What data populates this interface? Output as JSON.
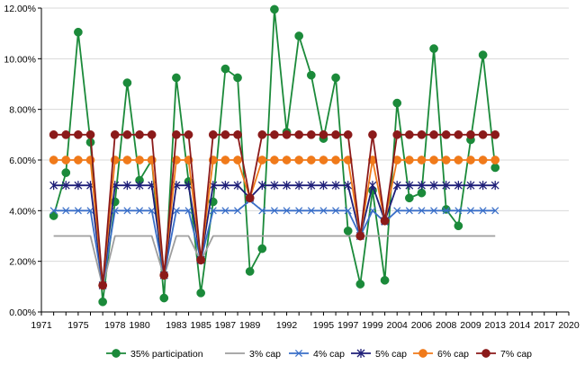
{
  "chart_data": {
    "type": "line",
    "title": "",
    "xlabel": "",
    "ylabel": "",
    "ylim": [
      0,
      12
    ],
    "y_tick_labels": [
      "0.00%",
      "2.00%",
      "4.00%",
      "6.00%",
      "8.00%",
      "10.00%",
      "12.00%"
    ],
    "y_tick_values": [
      0,
      2,
      4,
      6,
      8,
      10,
      12
    ],
    "x": [
      1971,
      1972,
      1973,
      1974,
      1975,
      1976,
      1977,
      1978,
      1979,
      1980,
      1981,
      1982,
      1983,
      1984,
      1985,
      1986,
      1987,
      1988,
      1989,
      1990,
      1991,
      1992,
      1993,
      1994,
      1995,
      1996,
      1997,
      1998,
      1999,
      2000,
      2001,
      2002,
      2003,
      2004,
      2005,
      2006,
      2007,
      2008,
      2009,
      2010,
      2011,
      2012,
      2013,
      2014,
      2015,
      2016,
      2017,
      2018,
      2019,
      2020
    ],
    "x_tick_labels": [
      "1971",
      "1975",
      "1978",
      "1980",
      "1983",
      "1985",
      "1987",
      "1989",
      "1992",
      "1995",
      "1997",
      "1999",
      "2004",
      "2006",
      "2008",
      "2009",
      "2013",
      "2014",
      "2017",
      "2020"
    ],
    "x_tick_positions": [
      0,
      1.5,
      3,
      4,
      5.5,
      6.5,
      7.5,
      8.5,
      10,
      11.5,
      12.5,
      13.5,
      14.5,
      15.5,
      16.5,
      17.5,
      18.5,
      19.5,
      20.5,
      21.5
    ],
    "x_index_max": 21.5,
    "series": [
      {
        "name": "35% participation",
        "color": "#1b8a3a",
        "marker": "circle",
        "points": [
          [
            0.5,
            3.8
          ],
          [
            1,
            5.5
          ],
          [
            1.5,
            11.05
          ],
          [
            2,
            6.7
          ],
          [
            2.5,
            0.4
          ],
          [
            3,
            4.35
          ],
          [
            3.5,
            9.05
          ],
          [
            4,
            5.2
          ],
          [
            4.5,
            6.0
          ],
          [
            5,
            0.55
          ],
          [
            5.5,
            9.25
          ],
          [
            6,
            5.15
          ],
          [
            6.5,
            0.75
          ],
          [
            7,
            4.35
          ],
          [
            7.5,
            9.6
          ],
          [
            8,
            9.25
          ],
          [
            8.5,
            1.6
          ],
          [
            9,
            2.5
          ],
          [
            9.5,
            11.95
          ],
          [
            10,
            7.1
          ],
          [
            10.5,
            10.9
          ],
          [
            11,
            9.35
          ],
          [
            11.5,
            6.85
          ],
          [
            12,
            9.25
          ],
          [
            12.5,
            3.2
          ],
          [
            13,
            1.1
          ],
          [
            13.5,
            4.8
          ],
          [
            14,
            1.25
          ],
          [
            14.5,
            8.25
          ],
          [
            15,
            4.5
          ],
          [
            15.5,
            4.7
          ],
          [
            16,
            10.4
          ],
          [
            16.5,
            4.05
          ],
          [
            17,
            3.4
          ],
          [
            17.5,
            6.8
          ],
          [
            18,
            10.15
          ],
          [
            18.5,
            5.7
          ]
        ]
      },
      {
        "name": "3% cap",
        "color": "#9e9e9e",
        "marker": "none",
        "points": [
          [
            0.5,
            3
          ],
          [
            1,
            3
          ],
          [
            1.5,
            3
          ],
          [
            2,
            3
          ],
          [
            2.5,
            1.0
          ],
          [
            3,
            3
          ],
          [
            3.5,
            3
          ],
          [
            4,
            3
          ],
          [
            4.5,
            3
          ],
          [
            5,
            1.4
          ],
          [
            5.5,
            3
          ],
          [
            6,
            3
          ],
          [
            6.5,
            2.0
          ],
          [
            7,
            3
          ],
          [
            7.5,
            3
          ],
          [
            8,
            3
          ],
          [
            8.5,
            3
          ],
          [
            9,
            3
          ],
          [
            9.5,
            3
          ],
          [
            10,
            3
          ],
          [
            10.5,
            3
          ],
          [
            11,
            3
          ],
          [
            11.5,
            3
          ],
          [
            12,
            3
          ],
          [
            12.5,
            3
          ],
          [
            13,
            3
          ],
          [
            13.5,
            3
          ],
          [
            14,
            3
          ],
          [
            14.5,
            3
          ],
          [
            15,
            3
          ],
          [
            15.5,
            3
          ],
          [
            16,
            3
          ],
          [
            16.5,
            3
          ],
          [
            17,
            3
          ],
          [
            17.5,
            3
          ],
          [
            18,
            3
          ],
          [
            18.5,
            3
          ]
        ]
      },
      {
        "name": "4% cap",
        "color": "#3a6fc8",
        "marker": "x",
        "points": [
          [
            0.5,
            4
          ],
          [
            1,
            4
          ],
          [
            1.5,
            4
          ],
          [
            2,
            4
          ],
          [
            2.5,
            1.05
          ],
          [
            3,
            4
          ],
          [
            3.5,
            4
          ],
          [
            4,
            4
          ],
          [
            4.5,
            4
          ],
          [
            5,
            1.45
          ],
          [
            5.5,
            4
          ],
          [
            6,
            4
          ],
          [
            6.5,
            2.05
          ],
          [
            7,
            4
          ],
          [
            7.5,
            4
          ],
          [
            8,
            4
          ],
          [
            8.5,
            4.4
          ],
          [
            9,
            4
          ],
          [
            9.5,
            4
          ],
          [
            10,
            4
          ],
          [
            10.5,
            4
          ],
          [
            11,
            4
          ],
          [
            11.5,
            4
          ],
          [
            12,
            4
          ],
          [
            12.5,
            4
          ],
          [
            13,
            3.0
          ],
          [
            13.5,
            4
          ],
          [
            14,
            3.55
          ],
          [
            14.5,
            4
          ],
          [
            15,
            4
          ],
          [
            15.5,
            4
          ],
          [
            16,
            4
          ],
          [
            16.5,
            4
          ],
          [
            17,
            4
          ],
          [
            17.5,
            4
          ],
          [
            18,
            4
          ],
          [
            18.5,
            4
          ]
        ]
      },
      {
        "name": "5% cap",
        "color": "#1f1f78",
        "marker": "star",
        "points": [
          [
            0.5,
            5
          ],
          [
            1,
            5
          ],
          [
            1.5,
            5
          ],
          [
            2,
            5
          ],
          [
            2.5,
            1.05
          ],
          [
            3,
            5
          ],
          [
            3.5,
            5
          ],
          [
            4,
            5
          ],
          [
            4.5,
            5
          ],
          [
            5,
            1.45
          ],
          [
            5.5,
            5
          ],
          [
            6,
            5
          ],
          [
            6.5,
            2.05
          ],
          [
            7,
            5
          ],
          [
            7.5,
            5
          ],
          [
            8,
            5
          ],
          [
            8.5,
            4.5
          ],
          [
            9,
            5
          ],
          [
            9.5,
            5
          ],
          [
            10,
            5
          ],
          [
            10.5,
            5
          ],
          [
            11,
            5
          ],
          [
            11.5,
            5
          ],
          [
            12,
            5
          ],
          [
            12.5,
            5
          ],
          [
            13,
            3.0
          ],
          [
            13.5,
            5
          ],
          [
            14,
            3.6
          ],
          [
            14.5,
            5
          ],
          [
            15,
            5
          ],
          [
            15.5,
            5
          ],
          [
            16,
            5
          ],
          [
            16.5,
            5
          ],
          [
            17,
            5
          ],
          [
            17.5,
            5
          ],
          [
            18,
            5
          ],
          [
            18.5,
            5
          ]
        ]
      },
      {
        "name": "6% cap",
        "color": "#f07a1a",
        "marker": "circle",
        "points": [
          [
            0.5,
            6
          ],
          [
            1,
            6
          ],
          [
            1.5,
            6
          ],
          [
            2,
            6
          ],
          [
            2.5,
            1.05
          ],
          [
            3,
            6
          ],
          [
            3.5,
            6
          ],
          [
            4,
            6
          ],
          [
            4.5,
            6
          ],
          [
            5,
            1.45
          ],
          [
            5.5,
            6
          ],
          [
            6,
            6
          ],
          [
            6.5,
            2.05
          ],
          [
            7,
            6
          ],
          [
            7.5,
            6
          ],
          [
            8,
            6
          ],
          [
            8.5,
            4.5
          ],
          [
            9,
            6
          ],
          [
            9.5,
            6
          ],
          [
            10,
            6
          ],
          [
            10.5,
            6
          ],
          [
            11,
            6
          ],
          [
            11.5,
            6
          ],
          [
            12,
            6
          ],
          [
            12.5,
            6
          ],
          [
            13,
            3.0
          ],
          [
            13.5,
            6
          ],
          [
            14,
            3.6
          ],
          [
            14.5,
            6
          ],
          [
            15,
            6
          ],
          [
            15.5,
            6
          ],
          [
            16,
            6
          ],
          [
            16.5,
            6
          ],
          [
            17,
            6
          ],
          [
            17.5,
            6
          ],
          [
            18,
            6
          ],
          [
            18.5,
            6
          ]
        ]
      },
      {
        "name": "7% cap",
        "color": "#8b1a1a",
        "marker": "circle",
        "points": [
          [
            0.5,
            7
          ],
          [
            1,
            7
          ],
          [
            1.5,
            7
          ],
          [
            2,
            7
          ],
          [
            2.5,
            1.05
          ],
          [
            3,
            7
          ],
          [
            3.5,
            7
          ],
          [
            4,
            7
          ],
          [
            4.5,
            7
          ],
          [
            5,
            1.45
          ],
          [
            5.5,
            7
          ],
          [
            6,
            7
          ],
          [
            6.5,
            2.05
          ],
          [
            7,
            7
          ],
          [
            7.5,
            7
          ],
          [
            8,
            7
          ],
          [
            8.5,
            4.5
          ],
          [
            9,
            7
          ],
          [
            9.5,
            7
          ],
          [
            10,
            7
          ],
          [
            10.5,
            7
          ],
          [
            11,
            7
          ],
          [
            11.5,
            7
          ],
          [
            12,
            7
          ],
          [
            12.5,
            7
          ],
          [
            13,
            3.0
          ],
          [
            13.5,
            7
          ],
          [
            14,
            3.6
          ],
          [
            14.5,
            7
          ],
          [
            15,
            7
          ],
          [
            15.5,
            7
          ],
          [
            16,
            7
          ],
          [
            16.5,
            7
          ],
          [
            17,
            7
          ],
          [
            17.5,
            7
          ],
          [
            18,
            7
          ],
          [
            18.5,
            7
          ]
        ]
      }
    ],
    "legend": {
      "position": "bottom",
      "labels": [
        "35% participation",
        "3% cap",
        "4% cap",
        "5% cap",
        "6% cap",
        "7% cap"
      ]
    }
  }
}
